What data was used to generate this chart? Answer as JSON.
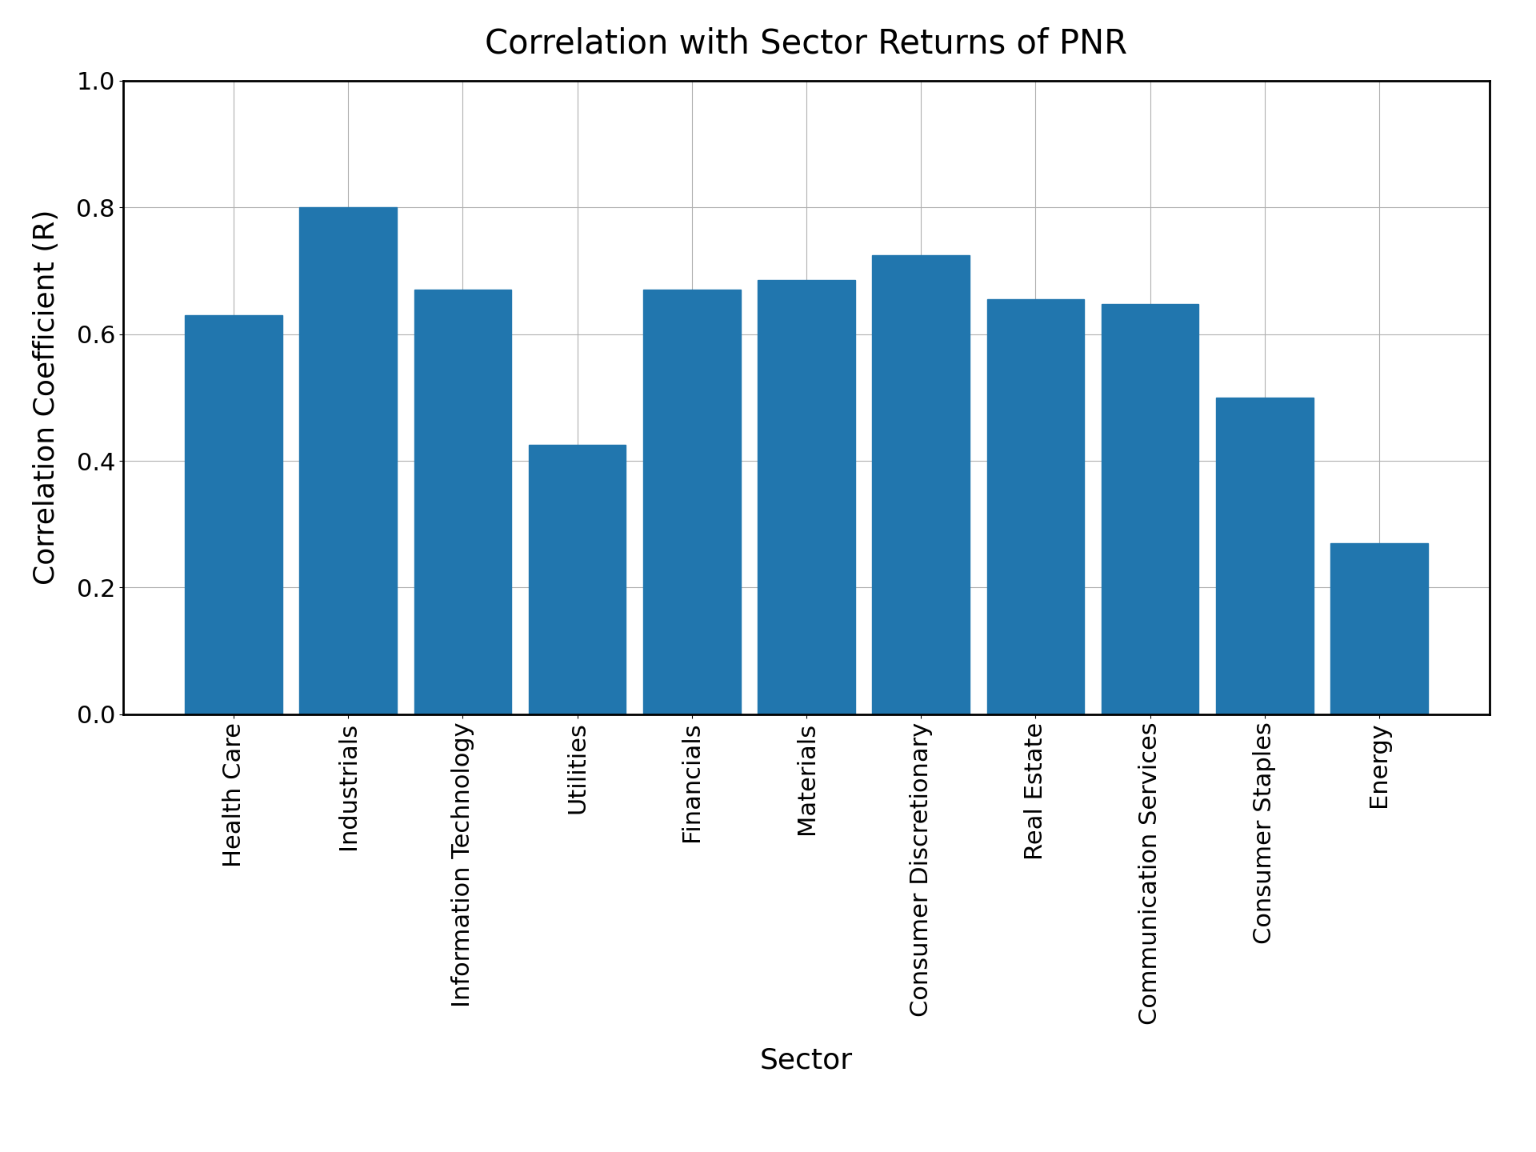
{
  "title": "Correlation with Sector Returns of PNR",
  "xlabel": "Sector",
  "ylabel": "Correlation Coefficient (R)",
  "categories": [
    "Health Care",
    "Industrials",
    "Information Technology",
    "Utilities",
    "Financials",
    "Materials",
    "Consumer Discretionary",
    "Real Estate",
    "Communication Services",
    "Consumer Staples",
    "Energy"
  ],
  "values": [
    0.63,
    0.8,
    0.67,
    0.425,
    0.67,
    0.685,
    0.725,
    0.655,
    0.648,
    0.5,
    0.27
  ],
  "bar_color": "#2176ae",
  "ylim": [
    0.0,
    1.0
  ],
  "yticks": [
    0.0,
    0.2,
    0.4,
    0.6,
    0.8,
    1.0
  ],
  "title_fontsize": 30,
  "axis_label_fontsize": 26,
  "tick_fontsize": 22,
  "background_color": "#ffffff",
  "grid": true,
  "bar_width": 0.85
}
